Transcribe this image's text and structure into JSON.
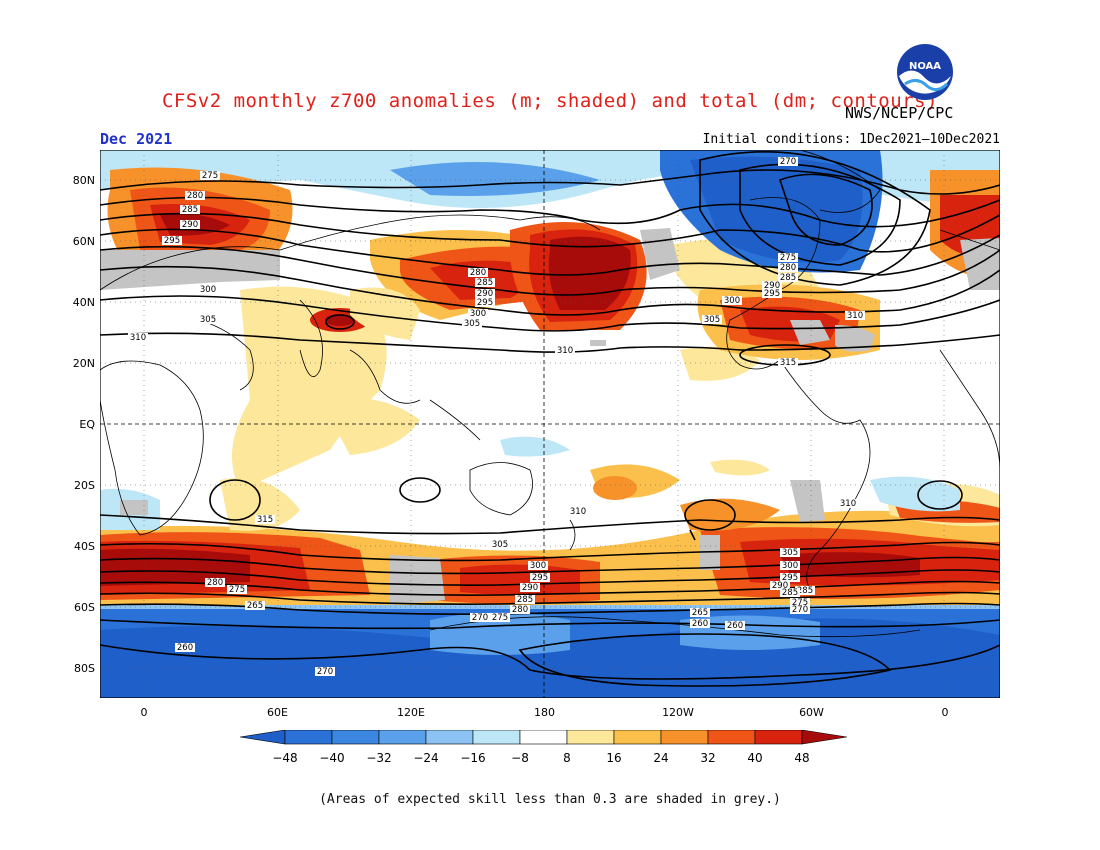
{
  "header": {
    "title": "CFSv2 monthly z700 anomalies (m; shaded) and total (dm; contours)",
    "agency": "NWS/NCEP/CPC",
    "logo_text": "NOAA",
    "month": "Dec 2021",
    "initial_conditions": "Initial conditions: 1Dec2021–10Dec2021"
  },
  "axes": {
    "lat_labels": [
      "80N",
      "60N",
      "40N",
      "20N",
      "EQ",
      "20S",
      "40S",
      "60S",
      "80S"
    ],
    "lon_labels": [
      "0",
      "60E",
      "120E",
      "180",
      "120W",
      "60W",
      "0"
    ]
  },
  "colorbar": {
    "ticks": [
      "-48",
      "-40",
      "-32",
      "-24",
      "-16",
      "-8",
      "8",
      "16",
      "24",
      "32",
      "40",
      "48"
    ],
    "colors": [
      "#1f5fc9",
      "#2a72d8",
      "#3b86e0",
      "#5aa0ea",
      "#8cc3f2",
      "#bde6f7",
      "#ffffff",
      "#fde79a",
      "#fbc04b",
      "#f7922a",
      "#ef5516",
      "#d8240e",
      "#a80c0a"
    ]
  },
  "contour_labels": {
    "nh": [
      "275",
      "280",
      "285",
      "290",
      "295",
      "300",
      "305",
      "310",
      "270",
      "275",
      "280",
      "285",
      "290",
      "295",
      "300",
      "305",
      "310",
      "315",
      "280",
      "285",
      "290",
      "295",
      "300",
      "305",
      "310"
    ],
    "sh": [
      "310",
      "315",
      "310",
      "305",
      "300",
      "295",
      "290",
      "285",
      "280",
      "275",
      "270",
      "265",
      "260",
      "305",
      "300",
      "295",
      "290",
      "285",
      "275",
      "270",
      "265",
      "260",
      "270",
      "265",
      "260",
      "285",
      "280",
      "275"
    ]
  },
  "footnote": "(Areas of expected skill less than 0.3 are shaded in grey.)"
}
